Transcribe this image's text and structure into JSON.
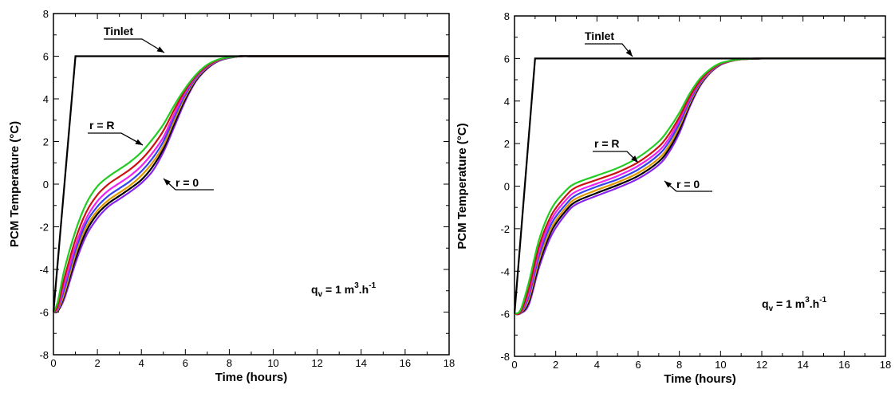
{
  "chart_data": [
    {
      "type": "line",
      "title": "",
      "xlabel": "Time (hours)",
      "ylabel": "PCM Temperature (°C)",
      "xlim": [
        0,
        18
      ],
      "ylim": [
        -8,
        8
      ],
      "xticks": [
        0,
        2,
        4,
        6,
        8,
        10,
        12,
        14,
        16,
        18
      ],
      "yticks": [
        -8,
        -6,
        -4,
        -2,
        0,
        2,
        4,
        6,
        8
      ],
      "grid": false,
      "annotations": {
        "inlet": "Tinlet",
        "outer": "r = R",
        "center": "r = 0",
        "flow_lhs": "q",
        "flow_sub": "v",
        "flow_eq": " = 1 m",
        "flow_sup1": "3",
        "flow_h": ".h",
        "flow_sup2": "-1"
      },
      "inlet_series": {
        "x": [
          0,
          1,
          18
        ],
        "y": [
          -6,
          6,
          6
        ],
        "color": "#000000"
      },
      "series": [
        {
          "color": "#22cc22",
          "x": [
            0,
            0.2,
            0.5,
            1,
            1.5,
            2,
            2.5,
            3,
            3.5,
            4,
            4.5,
            5,
            5.5,
            6,
            6.5,
            7,
            7.5,
            8,
            8.5,
            9,
            10,
            12,
            14,
            18
          ],
          "y": [
            -6,
            -5.5,
            -4,
            -2.2,
            -0.9,
            -0.1,
            0.35,
            0.7,
            1.05,
            1.5,
            2.1,
            2.8,
            3.7,
            4.5,
            5.15,
            5.6,
            5.85,
            5.95,
            6,
            6,
            6,
            6,
            6,
            6
          ]
        },
        {
          "color": "#cc1111",
          "x": [
            0,
            0.2,
            0.5,
            1,
            1.5,
            2,
            2.5,
            3,
            3.5,
            4,
            4.5,
            5,
            5.5,
            6,
            6.5,
            7,
            7.5,
            8,
            8.5,
            9,
            10,
            12,
            14,
            18
          ],
          "y": [
            -6,
            -5.7,
            -4.4,
            -2.6,
            -1.3,
            -0.5,
            0,
            0.35,
            0.7,
            1.15,
            1.75,
            2.5,
            3.5,
            4.4,
            5.1,
            5.55,
            5.83,
            5.95,
            6,
            6,
            6,
            6,
            6,
            6
          ]
        },
        {
          "color": "#ee22ee",
          "x": [
            0,
            0.2,
            0.5,
            1,
            1.5,
            2,
            2.5,
            3,
            3.5,
            4,
            4.5,
            5,
            5.5,
            6,
            6.5,
            7,
            7.5,
            8,
            8.5,
            9,
            10,
            12,
            14,
            18
          ],
          "y": [
            -6,
            -5.8,
            -4.7,
            -2.9,
            -1.6,
            -0.8,
            -0.3,
            0.05,
            0.4,
            0.85,
            1.45,
            2.2,
            3.3,
            4.3,
            5.05,
            5.52,
            5.82,
            5.94,
            6,
            6,
            6,
            6,
            6,
            6
          ]
        },
        {
          "color": "#3344ee",
          "x": [
            0,
            0.2,
            0.5,
            1,
            1.5,
            2,
            2.5,
            3,
            3.5,
            4,
            4.5,
            5,
            5.5,
            6,
            6.5,
            7,
            7.5,
            8,
            8.5,
            9,
            10,
            12,
            14,
            18
          ],
          "y": [
            -6,
            -5.85,
            -4.9,
            -3.1,
            -1.8,
            -1.05,
            -0.55,
            -0.2,
            0.15,
            0.6,
            1.2,
            2,
            3.15,
            4.2,
            5,
            5.5,
            5.8,
            5.93,
            6,
            6,
            6,
            6,
            6,
            6
          ]
        },
        {
          "color": "#dd9900",
          "x": [
            0,
            0.2,
            0.5,
            1,
            1.5,
            2,
            2.5,
            3,
            3.5,
            4,
            4.5,
            5,
            5.5,
            6,
            6.5,
            7,
            7.5,
            8,
            8.5,
            9,
            10,
            12,
            14,
            18
          ],
          "y": [
            -6,
            -5.9,
            -5.1,
            -3.3,
            -2,
            -1.25,
            -0.75,
            -0.4,
            -0.05,
            0.4,
            1,
            1.8,
            3,
            4.1,
            4.95,
            5.48,
            5.79,
            5.93,
            6,
            6,
            6,
            6,
            6,
            6
          ]
        },
        {
          "color": "#000000",
          "x": [
            0,
            0.2,
            0.5,
            1,
            1.5,
            2,
            2.5,
            3,
            3.5,
            4,
            4.5,
            5,
            5.5,
            6,
            6.5,
            7,
            7.5,
            8,
            8.5,
            9,
            10,
            12,
            14,
            18
          ],
          "y": [
            -6,
            -5.95,
            -5.2,
            -3.5,
            -2.2,
            -1.4,
            -0.9,
            -0.55,
            -0.2,
            0.2,
            0.8,
            1.65,
            2.85,
            4,
            4.9,
            5.45,
            5.78,
            5.92,
            6,
            6,
            6,
            6,
            6,
            6
          ]
        },
        {
          "color": "#8822ee",
          "x": [
            0,
            0.2,
            0.5,
            1,
            1.5,
            2,
            2.5,
            3,
            3.5,
            4,
            4.5,
            5,
            5.5,
            6,
            6.5,
            7,
            7.5,
            8,
            8.5,
            9,
            10,
            12,
            14,
            18
          ],
          "y": [
            -6,
            -5.95,
            -5.35,
            -3.7,
            -2.4,
            -1.6,
            -1.05,
            -0.7,
            -0.35,
            0.05,
            0.6,
            1.5,
            2.7,
            3.9,
            4.85,
            5.42,
            5.77,
            5.92,
            6,
            6,
            6,
            6,
            6,
            6
          ]
        }
      ]
    },
    {
      "type": "line",
      "title": "",
      "xlabel": "Time (hours)",
      "ylabel": "PCM Temperature (°C)",
      "xlim": [
        0,
        18
      ],
      "ylim": [
        -8,
        8
      ],
      "xticks": [
        0,
        2,
        4,
        6,
        8,
        10,
        12,
        14,
        16,
        18
      ],
      "yticks": [
        -8,
        -6,
        -4,
        -2,
        0,
        2,
        4,
        6,
        8
      ],
      "grid": false,
      "annotations": {
        "inlet": "Tinlet",
        "outer": "r = R",
        "center": "r = 0",
        "flow_lhs": "q",
        "flow_sub": "v",
        "flow_eq": " = 1 m",
        "flow_sup1": "3",
        "flow_h": ".h",
        "flow_sup2": "-1"
      },
      "inlet_series": {
        "x": [
          0,
          1,
          18
        ],
        "y": [
          -6,
          6,
          6
        ],
        "color": "#000000"
      },
      "series": [
        {
          "color": "#22cc22",
          "x": [
            0,
            0.3,
            0.7,
            1.2,
            1.8,
            2.5,
            3,
            4,
            5,
            6,
            7,
            7.5,
            8,
            8.5,
            9,
            9.5,
            10,
            10.5,
            11,
            12,
            13,
            18
          ],
          "y": [
            -6,
            -5.8,
            -4.5,
            -2.5,
            -1.05,
            -0.2,
            0.15,
            0.5,
            0.85,
            1.35,
            2.1,
            2.7,
            3.45,
            4.35,
            5.05,
            5.5,
            5.78,
            5.9,
            5.97,
            6,
            6,
            6
          ]
        },
        {
          "color": "#cc1111",
          "x": [
            0,
            0.3,
            0.7,
            1.2,
            1.8,
            2.5,
            3,
            4,
            5,
            6,
            7,
            7.5,
            8,
            8.5,
            9,
            9.5,
            10,
            10.5,
            11,
            12,
            13,
            18
          ],
          "y": [
            -6,
            -5.9,
            -4.8,
            -2.8,
            -1.35,
            -0.45,
            -0.05,
            0.3,
            0.65,
            1.12,
            1.85,
            2.45,
            3.25,
            4.2,
            4.95,
            5.45,
            5.75,
            5.9,
            5.97,
            6,
            6,
            6
          ]
        },
        {
          "color": "#ee22ee",
          "x": [
            0,
            0.3,
            0.7,
            1.2,
            1.8,
            2.5,
            3,
            4,
            5,
            6,
            7,
            7.5,
            8,
            8.5,
            9,
            9.5,
            10,
            10.5,
            11,
            12,
            13,
            18
          ],
          "y": [
            -6,
            -5.92,
            -5,
            -3.05,
            -1.55,
            -0.65,
            -0.25,
            0.12,
            0.48,
            0.95,
            1.65,
            2.25,
            3.1,
            4.1,
            4.9,
            5.42,
            5.74,
            5.89,
            5.97,
            6,
            6,
            6
          ]
        },
        {
          "color": "#3344ee",
          "x": [
            0,
            0.3,
            0.7,
            1.2,
            1.8,
            2.5,
            3,
            4,
            5,
            6,
            7,
            7.5,
            8,
            8.5,
            9,
            9.5,
            10,
            10.5,
            11,
            12,
            13,
            18
          ],
          "y": [
            -6,
            -5.95,
            -5.15,
            -3.25,
            -1.75,
            -0.85,
            -0.42,
            -0.02,
            0.32,
            0.78,
            1.48,
            2.08,
            2.95,
            4,
            4.85,
            5.4,
            5.73,
            5.89,
            5.97,
            6,
            6,
            6
          ]
        },
        {
          "color": "#dd9900",
          "x": [
            0,
            0.3,
            0.7,
            1.2,
            1.8,
            2.5,
            3,
            4,
            5,
            6,
            7,
            7.5,
            8,
            8.5,
            9,
            9.5,
            10,
            10.5,
            11,
            12,
            13,
            18
          ],
          "y": [
            -6,
            -5.96,
            -5.3,
            -3.45,
            -1.95,
            -1.0,
            -0.58,
            -0.18,
            0.18,
            0.62,
            1.3,
            1.9,
            2.8,
            3.9,
            4.8,
            5.37,
            5.72,
            5.88,
            5.96,
            6,
            6,
            6
          ]
        },
        {
          "color": "#000000",
          "x": [
            0,
            0.3,
            0.7,
            1.2,
            1.8,
            2.5,
            3,
            4,
            5,
            6,
            7,
            7.5,
            8,
            8.5,
            9,
            9.5,
            10,
            10.5,
            11,
            12,
            13,
            18
          ],
          "y": [
            -6,
            -5.97,
            -5.42,
            -3.62,
            -2.1,
            -1.15,
            -0.72,
            -0.32,
            0.05,
            0.48,
            1.15,
            1.75,
            2.65,
            3.82,
            4.75,
            5.35,
            5.71,
            5.88,
            5.96,
            6,
            6,
            6
          ]
        },
        {
          "color": "#8822ee",
          "x": [
            0,
            0.3,
            0.7,
            1.2,
            1.8,
            2.5,
            3,
            4,
            5,
            6,
            7,
            7.5,
            8,
            8.5,
            9,
            9.5,
            10,
            10.5,
            11,
            12,
            13,
            18
          ],
          "y": [
            -6,
            -5.98,
            -5.55,
            -3.8,
            -2.3,
            -1.3,
            -0.85,
            -0.45,
            -0.08,
            0.35,
            1.0,
            1.6,
            2.5,
            3.72,
            4.7,
            5.32,
            5.7,
            5.87,
            5.96,
            6,
            6,
            6
          ]
        }
      ]
    }
  ]
}
